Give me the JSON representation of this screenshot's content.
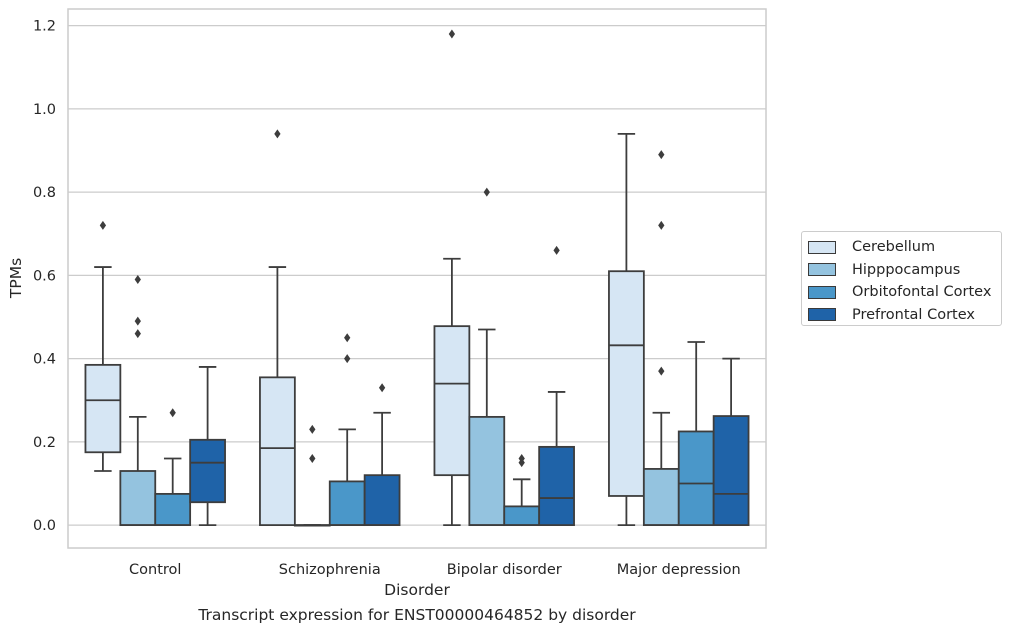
{
  "chart_data": {
    "type": "box",
    "title": "",
    "caption": "Transcript expression for ENST00000464852 by disorder",
    "xlabel": "Disorder",
    "ylabel": "TPMs",
    "ylim": [
      -0.055,
      1.24
    ],
    "yticks": [
      "0.0",
      "0.2",
      "0.4",
      "0.6",
      "0.8",
      "1.0",
      "1.2"
    ],
    "grid": "horizontal",
    "legend_position": "right",
    "categories": [
      "Control",
      "Schizophrenia",
      "Bipolar disorder",
      "Major depression"
    ],
    "series": [
      {
        "name": "Cerebellum",
        "color": "#d6e6f4",
        "boxes": [
          {
            "min": 0.13,
            "q1": 0.175,
            "median": 0.3,
            "q3": 0.385,
            "max": 0.62,
            "outliers": [
              0.72
            ]
          },
          {
            "min": 0.0,
            "q1": 0.0,
            "median": 0.185,
            "q3": 0.355,
            "max": 0.62,
            "outliers": [
              0.94
            ]
          },
          {
            "min": 0.0,
            "q1": 0.12,
            "median": 0.34,
            "q3": 0.478,
            "max": 0.64,
            "outliers": [
              1.18
            ]
          },
          {
            "min": 0.0,
            "q1": 0.07,
            "median": 0.432,
            "q3": 0.61,
            "max": 0.94,
            "outliers": []
          }
        ]
      },
      {
        "name": "Hipppocampus",
        "color": "#94c3df",
        "boxes": [
          {
            "min": 0.0,
            "q1": 0.0,
            "median": 0.0,
            "q3": 0.13,
            "max": 0.26,
            "outliers": [
              0.46,
              0.49,
              0.59
            ]
          },
          {
            "min": 0.0,
            "q1": 0.0,
            "median": 0.0,
            "q3": 0.0,
            "max": 0.0,
            "outliers": [
              0.16,
              0.23
            ]
          },
          {
            "min": 0.0,
            "q1": 0.0,
            "median": 0.0,
            "q3": 0.26,
            "max": 0.47,
            "outliers": [
              0.8
            ]
          },
          {
            "min": 0.0,
            "q1": 0.0,
            "median": 0.0,
            "q3": 0.135,
            "max": 0.27,
            "outliers": [
              0.37,
              0.72,
              0.89
            ]
          }
        ]
      },
      {
        "name": "Orbitofontal Cortex",
        "color": "#4a97c9",
        "boxes": [
          {
            "min": 0.0,
            "q1": 0.0,
            "median": 0.0,
            "q3": 0.075,
            "max": 0.16,
            "outliers": [
              0.27
            ]
          },
          {
            "min": 0.0,
            "q1": 0.0,
            "median": 0.0,
            "q3": 0.105,
            "max": 0.23,
            "outliers": [
              0.4,
              0.45
            ]
          },
          {
            "min": 0.0,
            "q1": 0.0,
            "median": 0.0,
            "q3": 0.045,
            "max": 0.11,
            "outliers": [
              0.15,
              0.16
            ]
          },
          {
            "min": 0.0,
            "q1": 0.0,
            "median": 0.1,
            "q3": 0.225,
            "max": 0.44,
            "outliers": []
          }
        ]
      },
      {
        "name": "Prefrontal Cortex",
        "color": "#1f63a8",
        "boxes": [
          {
            "min": 0.0,
            "q1": 0.055,
            "median": 0.15,
            "q3": 0.205,
            "max": 0.38,
            "outliers": []
          },
          {
            "min": 0.0,
            "q1": 0.0,
            "median": 0.0,
            "q3": 0.12,
            "max": 0.27,
            "outliers": [
              0.33
            ]
          },
          {
            "min": 0.0,
            "q1": 0.0,
            "median": 0.065,
            "q3": 0.188,
            "max": 0.32,
            "outliers": [
              0.66
            ]
          },
          {
            "min": 0.0,
            "q1": 0.0,
            "median": 0.075,
            "q3": 0.262,
            "max": 0.4,
            "outliers": []
          }
        ]
      }
    ]
  }
}
